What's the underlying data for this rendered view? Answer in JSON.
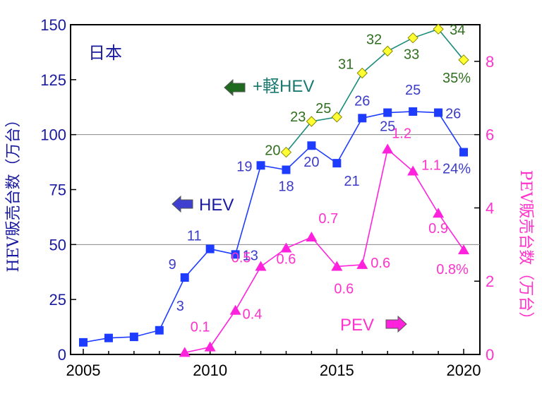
{
  "colors": {
    "hev": "#1e3cff",
    "mild": "#1a8c7a",
    "mild_marker": "#ffff33",
    "pev": "#ff22dd",
    "axis_left": "#1a1aa0",
    "axis_right": "#ff33cc",
    "arrow_hev": "#4040d0",
    "arrow_mild": "#1f6a1f",
    "arrow_pev": "#ff22dd"
  },
  "chart_data": {
    "type": "line",
    "title": "日本",
    "ylabel": "HEV販売台数（万台）",
    "y2label": "PEV販売台数（万台）",
    "xlim": [
      2005,
      2020
    ],
    "ylim": [
      0,
      150
    ],
    "y2lim": [
      0,
      9
    ],
    "x_ticks": [
      2005,
      2010,
      2015,
      2020
    ],
    "y_ticks": [
      0,
      25,
      50,
      75,
      100,
      125,
      150
    ],
    "y2_ticks": [
      0,
      2,
      4,
      6,
      8
    ],
    "gridlines_y": [
      50,
      100
    ],
    "series": [
      {
        "key": "hev",
        "name": "HEV",
        "axis": "left",
        "marker": "square",
        "x": [
          2005,
          2006,
          2007,
          2008,
          2009,
          2010,
          2011,
          2012,
          2013,
          2014,
          2015,
          2016,
          2017,
          2018,
          2019,
          2020
        ],
        "y": [
          5.5,
          7.5,
          8,
          11,
          35,
          48,
          45.5,
          86,
          84,
          95,
          87,
          107.5,
          110,
          110.5,
          110,
          92
        ],
        "labels": [
          "",
          "",
          "",
          "3",
          "9",
          "11",
          "13",
          "19",
          "18",
          "20",
          "21",
          "26",
          "25",
          "25",
          "26",
          "24%"
        ]
      },
      {
        "key": "mild",
        "name": "+軽HEV",
        "axis": "left",
        "marker": "diamond",
        "x": [
          2013,
          2014,
          2015,
          2016,
          2017,
          2018,
          2019,
          2020
        ],
        "y": [
          92,
          106,
          108,
          128,
          138,
          144,
          148,
          134
        ],
        "labels": [
          "20",
          "23",
          "25",
          "31",
          "32",
          "33",
          "34",
          "35%"
        ]
      },
      {
        "key": "pev",
        "name": "PEV",
        "axis": "right",
        "marker": "triangle",
        "x": [
          2009,
          2010,
          2011,
          2012,
          2013,
          2014,
          2015,
          2016,
          2017,
          2018,
          2019,
          2020
        ],
        "y": [
          0.05,
          0.2,
          1.2,
          2.4,
          2.9,
          3.2,
          2.4,
          2.45,
          5.6,
          5.0,
          3.85,
          2.85
        ],
        "labels": [
          "",
          "0.1",
          "0.4",
          "0.5",
          "0.6",
          "0.7",
          "0.6",
          "0.6",
          "1.2",
          "1.1",
          "0.9",
          "0.8%"
        ]
      }
    ]
  }
}
